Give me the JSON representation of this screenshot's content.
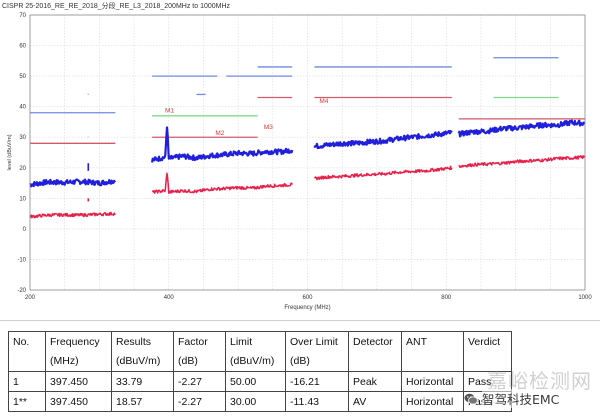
{
  "chart_data": {
    "type": "line",
    "title": "CISPR 25-2016_RE_RE_2018_分段_RE_L3_2018_200MHz to 1000MHz",
    "xlabel": "Frequency (MHz)",
    "ylabel": "level (dBuV/m)",
    "xlim": [
      200,
      1000
    ],
    "ylim": [
      -20,
      70
    ],
    "x_ticks": [
      200,
      400,
      600,
      800,
      1000
    ],
    "y_ticks": [
      -20,
      -10,
      0,
      10,
      20,
      30,
      40,
      50,
      60,
      70
    ],
    "grid": true,
    "series": [
      {
        "color": "#1f1fdd",
        "segments": [
          {
            "x": [
              200,
              225,
              250,
              275,
              300,
              323
            ],
            "y": [
              14.5,
              15.3,
              15.2,
              15.5,
              15.0,
              15.8
            ]
          },
          {
            "x": [
              376,
              395,
              397.45,
              400,
              420,
              440,
              460,
              480,
              500,
              520,
              540,
              560,
              578
            ],
            "y": [
              22.5,
              23.5,
              33.79,
              23.0,
              23.8,
              23.2,
              24.0,
              24.3,
              24.8,
              24.6,
              25.3,
              25.2,
              25.8
            ]
          },
          {
            "x": [
              610,
              630,
              650,
              670,
              690,
              710,
              730,
              750,
              770,
              790,
              808
            ],
            "y": [
              27.0,
              27.5,
              28.0,
              28.0,
              28.5,
              28.8,
              29.5,
              30.0,
              30.5,
              31.0,
              31.5
            ]
          },
          {
            "x": [
              818,
              840,
              860,
              880,
              900,
              920,
              940,
              960,
              980,
              1000
            ],
            "y": [
              31.0,
              31.8,
              32.0,
              32.8,
              33.0,
              33.5,
              34.0,
              34.0,
              34.8,
              34.5
            ]
          }
        ]
      },
      {
        "color": "#e8204a",
        "segments": [
          {
            "x": [
              200,
              225,
              250,
              275,
              300,
              323
            ],
            "y": [
              4.0,
              4.5,
              4.6,
              4.5,
              4.8,
              5.0
            ]
          },
          {
            "x": [
              376,
              395,
              397.45,
              400,
              420,
              440,
              460,
              480,
              500,
              520,
              540,
              560,
              578
            ],
            "y": [
              12.0,
              12.5,
              18.57,
              12.0,
              12.5,
              12.2,
              13.0,
              13.2,
              13.5,
              13.3,
              14.0,
              14.2,
              14.5
            ]
          },
          {
            "x": [
              610,
              630,
              650,
              670,
              690,
              710,
              730,
              750,
              770,
              790,
              808
            ],
            "y": [
              16.5,
              17.0,
              17.2,
              17.5,
              17.8,
              18.0,
              18.5,
              18.8,
              19.0,
              19.5,
              20.0
            ]
          },
          {
            "x": [
              818,
              840,
              860,
              880,
              900,
              920,
              940,
              960,
              980,
              1000
            ],
            "y": [
              20.5,
              21.0,
              21.2,
              21.5,
              22.0,
              22.3,
              22.5,
              23.0,
              23.2,
              23.5
            ]
          }
        ]
      }
    ],
    "spurs": [
      {
        "x": 284,
        "y_low": 19,
        "y_high": 21.5,
        "color": "#1f1fdd"
      },
      {
        "x": 284,
        "y_low": 9,
        "y_high": 10,
        "color": "#e8204a"
      },
      {
        "x": 284,
        "y_low": 44,
        "y_high": 44.2,
        "color": "#4a7ad8"
      },
      {
        "x": 284,
        "y_low": 30,
        "y_high": 30.2,
        "color": "#7fd8a8"
      }
    ],
    "limit_lines": [
      {
        "color": "#6f8ae0",
        "x1": 200,
        "x2": 323,
        "y": 38
      },
      {
        "color": "#d05a6a",
        "x1": 200,
        "x2": 323,
        "y": 28
      },
      {
        "color": "#6f8ae0",
        "x1": 376,
        "x2": 470,
        "y": 50
      },
      {
        "color": "#6f8ae0",
        "x1": 440,
        "x2": 453,
        "y": 44
      },
      {
        "color": "#6f8ae0",
        "x1": 483,
        "x2": 578,
        "y": 50
      },
      {
        "color": "#6f8ae0",
        "x1": 528,
        "x2": 578,
        "y": 53
      },
      {
        "color": "#d05a6a",
        "x1": 528,
        "x2": 578,
        "y": 43
      },
      {
        "color": "#7fd88a",
        "x1": 376,
        "x2": 528,
        "y": 37
      },
      {
        "color": "#d05a6a",
        "x1": 376,
        "x2": 528,
        "y": 30
      },
      {
        "color": "#6f8ae0",
        "x1": 610,
        "x2": 808,
        "y": 53
      },
      {
        "color": "#d05a6a",
        "x1": 610,
        "x2": 808,
        "y": 43
      },
      {
        "color": "#6f8ae0",
        "x1": 868,
        "x2": 962,
        "y": 56
      },
      {
        "color": "#7fd88a",
        "x1": 868,
        "x2": 962,
        "y": 43
      },
      {
        "color": "#d05a6a",
        "x1": 818,
        "x2": 1000,
        "y": 36
      }
    ],
    "markers": [
      {
        "label": "M1",
        "x": 397.45,
        "y": 37.5
      },
      {
        "label": "M2",
        "x": 470,
        "y": 30
      },
      {
        "label": "M3",
        "x": 540,
        "y": 32
      },
      {
        "label": "M4",
        "x": 620,
        "y": 40.5
      }
    ]
  },
  "table": {
    "headers": [
      "No.",
      "Frequency",
      "Results",
      "Factor",
      "Limit",
      "Over Limit",
      "Detector",
      "ANT",
      "Verdict"
    ],
    "units": [
      "",
      "(MHz)",
      "(dBuV/m)",
      "(dB)",
      "(dBuV/m)",
      "(dB)",
      "",
      "",
      ""
    ],
    "rows": [
      [
        "1",
        "397.450",
        "33.79",
        "-2.27",
        "50.00",
        "-16.21",
        "Peak",
        "Horizontal",
        "Pass"
      ],
      [
        "1**",
        "397.450",
        "18.57",
        "-2.27",
        "30.00",
        "-11.43",
        "AV",
        "Horizontal",
        "Pass"
      ]
    ]
  },
  "watermark": {
    "text1": "嘉峪检测网",
    "text2": "智驾科技EMC"
  }
}
